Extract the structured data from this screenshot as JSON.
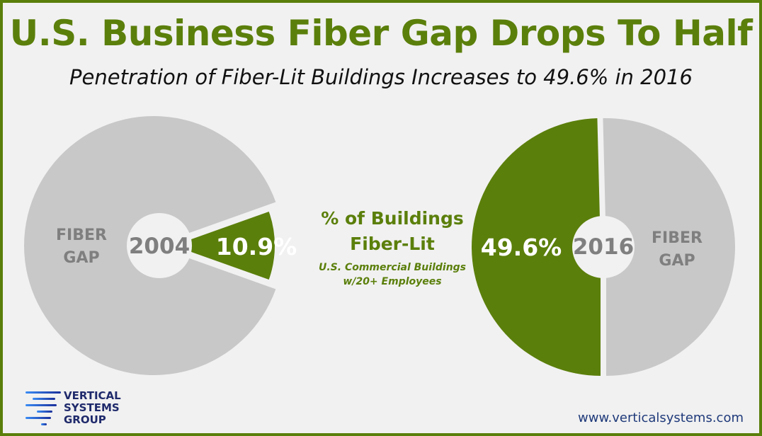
{
  "title": "U.S. Business Fiber Gap Drops To Half",
  "subtitle": "Penetration of Fiber-Lit Buildings  Increases to 49.6% in 2016",
  "center_label": {
    "line1": "% of Buildings",
    "line2": "Fiber-Lit",
    "note1": "U.S. Commercial Buildings",
    "note2": "w/20+ Employees"
  },
  "colors": {
    "fiber_lit": "#5b7f0b",
    "fiber_gap": "#c8c8c8",
    "background": "#f1f1f1"
  },
  "chart_data": [
    {
      "type": "pie",
      "center_label": "2004",
      "slices": [
        {
          "label": "10.9%",
          "value": 10.9,
          "exploded": true
        },
        {
          "label": "FIBER GAP",
          "value": 89.1
        }
      ]
    },
    {
      "type": "pie",
      "center_label": "2016",
      "slices": [
        {
          "label": "49.6%",
          "value": 49.6
        },
        {
          "label": "FIBER GAP",
          "value": 50.4
        }
      ]
    }
  ],
  "logo": {
    "line1": "VERTICAL",
    "line2": "SYSTEMS",
    "line3": "GROUP"
  },
  "website": "www.verticalsystems.com"
}
